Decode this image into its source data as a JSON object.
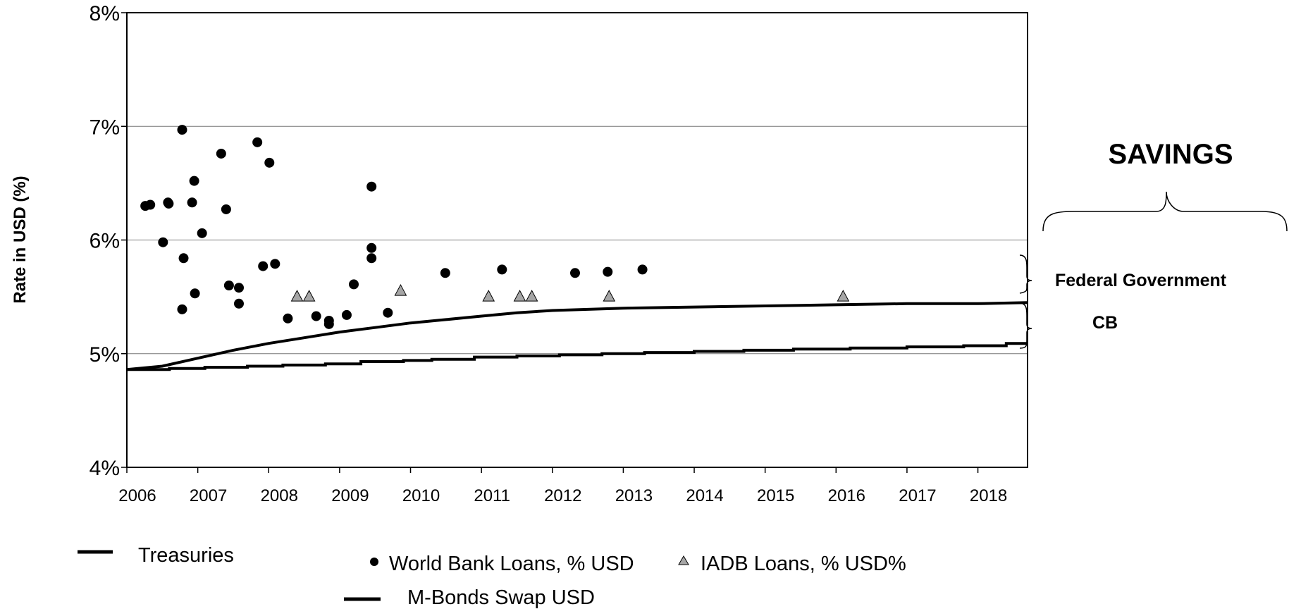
{
  "chart_data": {
    "type": "scatter",
    "ylabel": "Rate in USD  (%)",
    "ylim": [
      4,
      8
    ],
    "xlim": [
      2006,
      2018.7
    ],
    "yticks": [
      "4%",
      "5%",
      "6%",
      "7%",
      "8%"
    ],
    "xticks": [
      "2006",
      "2007",
      "2008",
      "2009",
      "2010",
      "2011",
      "2012",
      "2013",
      "2014",
      "2015",
      "2016",
      "2017",
      "2018"
    ],
    "grid": true,
    "series": [
      {
        "name": "World Bank Loans, % USD",
        "kind": "scatter",
        "marker": "circle",
        "points": [
          [
            2006.26,
            6.3
          ],
          [
            2006.33,
            6.31
          ],
          [
            2006.51,
            5.98
          ],
          [
            2006.58,
            6.33
          ],
          [
            2006.59,
            6.32
          ],
          [
            2006.78,
            6.97
          ],
          [
            2006.8,
            5.84
          ],
          [
            2006.78,
            5.39
          ],
          [
            2006.95,
            6.52
          ],
          [
            2006.92,
            6.33
          ],
          [
            2006.96,
            5.53
          ],
          [
            2007.06,
            6.06
          ],
          [
            2007.33,
            6.76
          ],
          [
            2007.4,
            6.27
          ],
          [
            2007.44,
            5.6
          ],
          [
            2007.58,
            5.58
          ],
          [
            2007.58,
            5.44
          ],
          [
            2007.84,
            6.86
          ],
          [
            2007.92,
            5.77
          ],
          [
            2008.01,
            6.68
          ],
          [
            2008.09,
            5.79
          ],
          [
            2008.27,
            5.31
          ],
          [
            2008.67,
            5.33
          ],
          [
            2008.85,
            5.29
          ],
          [
            2008.85,
            5.26
          ],
          [
            2009.1,
            5.34
          ],
          [
            2009.2,
            5.61
          ],
          [
            2009.45,
            6.47
          ],
          [
            2009.45,
            5.93
          ],
          [
            2009.45,
            5.84
          ],
          [
            2009.68,
            5.36
          ],
          [
            2010.49,
            5.71
          ],
          [
            2011.29,
            5.74
          ],
          [
            2012.32,
            5.71
          ],
          [
            2012.78,
            5.72
          ],
          [
            2013.27,
            5.74
          ]
        ]
      },
      {
        "name": "IADB Loans, % USD%",
        "kind": "scatter",
        "marker": "triangle",
        "color": "#a6a6a6",
        "points": [
          [
            2008.4,
            5.5
          ],
          [
            2008.57,
            5.5
          ],
          [
            2009.86,
            5.55
          ],
          [
            2011.1,
            5.5
          ],
          [
            2011.54,
            5.5
          ],
          [
            2011.71,
            5.5
          ],
          [
            2012.8,
            5.5
          ],
          [
            2016.1,
            5.5
          ]
        ]
      },
      {
        "name": "Treasuries",
        "kind": "line",
        "points": [
          [
            2006.0,
            4.86
          ],
          [
            2006.5,
            4.89
          ],
          [
            2007.0,
            4.96
          ],
          [
            2007.5,
            5.03
          ],
          [
            2008.0,
            5.09
          ],
          [
            2008.5,
            5.14
          ],
          [
            2009.0,
            5.19
          ],
          [
            2009.5,
            5.23
          ],
          [
            2010.0,
            5.27
          ],
          [
            2010.5,
            5.3
          ],
          [
            2011.0,
            5.33
          ],
          [
            2011.5,
            5.36
          ],
          [
            2012.0,
            5.38
          ],
          [
            2012.5,
            5.39
          ],
          [
            2013.0,
            5.4
          ],
          [
            2014.0,
            5.41
          ],
          [
            2015.0,
            5.42
          ],
          [
            2016.0,
            5.43
          ],
          [
            2017.0,
            5.44
          ],
          [
            2018.0,
            5.44
          ],
          [
            2018.7,
            5.45
          ]
        ]
      },
      {
        "name": "M-Bonds Swap USD",
        "kind": "step",
        "points": [
          [
            2006.0,
            4.86
          ],
          [
            2006.6,
            4.87
          ],
          [
            2007.1,
            4.88
          ],
          [
            2007.7,
            4.89
          ],
          [
            2008.2,
            4.9
          ],
          [
            2008.8,
            4.91
          ],
          [
            2009.3,
            4.93
          ],
          [
            2009.9,
            4.94
          ],
          [
            2010.3,
            4.95
          ],
          [
            2010.9,
            4.97
          ],
          [
            2011.5,
            4.98
          ],
          [
            2012.1,
            4.99
          ],
          [
            2012.7,
            5.0
          ],
          [
            2013.3,
            5.01
          ],
          [
            2014.0,
            5.02
          ],
          [
            2014.7,
            5.03
          ],
          [
            2015.4,
            5.04
          ],
          [
            2016.2,
            5.05
          ],
          [
            2017.0,
            5.06
          ],
          [
            2017.8,
            5.07
          ],
          [
            2018.4,
            5.09
          ],
          [
            2018.7,
            5.09
          ]
        ]
      }
    ],
    "annotations": {
      "savings": "SAVINGS",
      "federal": "Federal Government",
      "cb": "CB"
    }
  }
}
